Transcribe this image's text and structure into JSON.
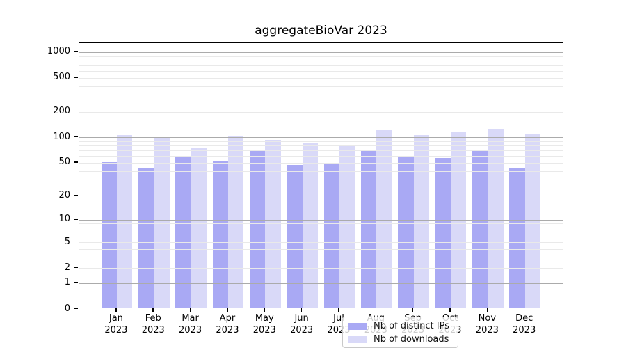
{
  "title": "aggregateBioVar 2023",
  "chart_data": {
    "type": "bar",
    "title": "aggregateBioVar 2023",
    "categories": [
      "Jan",
      "Feb",
      "Mar",
      "Apr",
      "May",
      "Jun",
      "Jul",
      "Aug",
      "Sep",
      "Oct",
      "Nov",
      "Dec"
    ],
    "year_label": "2023",
    "series": [
      {
        "name": "Nb of distinct IPs",
        "color": "#a9a9f4",
        "values": [
          49,
          42,
          57,
          51,
          66,
          45,
          48,
          68,
          56,
          55,
          66,
          42
        ]
      },
      {
        "name": "Nb of downloads",
        "color": "#d9d9f8",
        "values": [
          102,
          96,
          73,
          100,
          90,
          82,
          77,
          118,
          103,
          110,
          122,
          105
        ]
      }
    ],
    "y_axis": {
      "scale": "log10(1+y)",
      "tick_values": [
        0,
        1,
        2,
        5,
        10,
        20,
        50,
        100,
        200,
        500,
        1000
      ],
      "tick_labels": [
        "0",
        "1",
        "2",
        "5",
        "10",
        "20",
        "50",
        "100",
        "200",
        "500",
        "1000"
      ],
      "major_grid_values": [
        1,
        10,
        100,
        1000
      ],
      "ylim": [
        0,
        1280
      ]
    },
    "legend": {
      "position": "bottom-center"
    },
    "grid": true
  },
  "colors": {
    "major_grid": "#ababab",
    "minor_grid": "#e9e9e9",
    "axis": "#000000",
    "legend_border": "#c9c9c9"
  }
}
